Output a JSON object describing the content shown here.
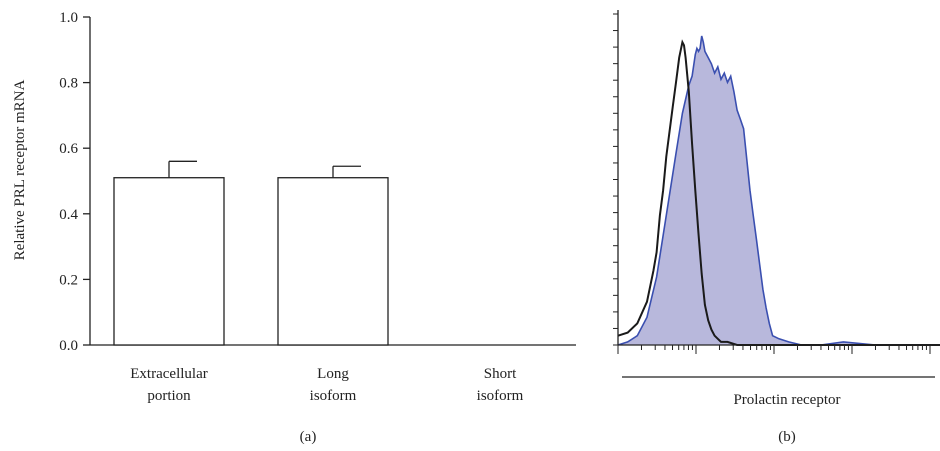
{
  "chart_data": [
    {
      "type": "bar",
      "panel_label": "(a)",
      "ylabel": "Relative PRL receptor mRNA",
      "ylim": [
        0,
        1.0
      ],
      "y_ticks": [
        "0.0",
        "0.2",
        "0.4",
        "0.6",
        "0.8",
        "1.0"
      ],
      "categories": [
        [
          "Extracellular",
          "portion"
        ],
        [
          "Long",
          "isoform"
        ],
        [
          "Short",
          "isoform"
        ]
      ],
      "values": [
        0.51,
        0.51,
        0.0
      ],
      "errors": [
        0.05,
        0.035,
        0.0
      ],
      "bar_fill": "#ffffff",
      "bar_stroke": "#222222",
      "grid": false
    },
    {
      "type": "area",
      "panel_label": "(b)",
      "xlabel": "Prolactin receptor",
      "x_scale": "log",
      "x_ticks_labeled": false,
      "y_ticks_labeled": false,
      "grid": false,
      "series": [
        {
          "style": "filled",
          "color": "#3a4fb0",
          "fill": "#b8b8dc",
          "x": [
            0.0,
            0.03,
            0.06,
            0.09,
            0.12,
            0.15,
            0.18,
            0.2,
            0.22,
            0.23,
            0.24,
            0.245,
            0.25,
            0.255,
            0.26,
            0.265,
            0.27,
            0.28,
            0.29,
            0.3,
            0.31,
            0.32,
            0.33,
            0.34,
            0.35,
            0.36,
            0.37,
            0.38,
            0.39,
            0.4,
            0.41,
            0.42,
            0.43,
            0.44,
            0.45,
            0.46,
            0.47,
            0.48,
            0.5,
            0.53,
            0.57,
            0.6,
            0.63,
            0.7,
            0.8,
            0.9,
            1.0
          ],
          "y": [
            0.0,
            0.01,
            0.03,
            0.09,
            0.22,
            0.42,
            0.62,
            0.75,
            0.84,
            0.87,
            0.94,
            0.96,
            0.95,
            0.96,
            1.0,
            0.98,
            0.95,
            0.93,
            0.91,
            0.88,
            0.9,
            0.86,
            0.88,
            0.85,
            0.87,
            0.82,
            0.76,
            0.73,
            0.7,
            0.6,
            0.5,
            0.42,
            0.34,
            0.26,
            0.18,
            0.12,
            0.07,
            0.03,
            0.02,
            0.01,
            0.0,
            0.0,
            0.0,
            0.01,
            0.0,
            0.0,
            0.0
          ]
        },
        {
          "style": "line",
          "color": "#1a1a1a",
          "x": [
            0.0,
            0.03,
            0.06,
            0.09,
            0.11,
            0.12,
            0.13,
            0.14,
            0.15,
            0.16,
            0.17,
            0.18,
            0.19,
            0.2,
            0.205,
            0.21,
            0.22,
            0.23,
            0.24,
            0.25,
            0.26,
            0.27,
            0.28,
            0.29,
            0.3,
            0.31,
            0.32,
            0.34,
            0.37,
            0.4,
            0.45,
            0.55,
            0.7,
            0.85,
            1.0
          ],
          "y": [
            0.03,
            0.04,
            0.07,
            0.14,
            0.24,
            0.3,
            0.42,
            0.5,
            0.61,
            0.69,
            0.77,
            0.85,
            0.93,
            0.98,
            0.97,
            0.93,
            0.82,
            0.65,
            0.5,
            0.36,
            0.23,
            0.13,
            0.08,
            0.05,
            0.03,
            0.02,
            0.01,
            0.01,
            0.0,
            0.0,
            0.0,
            0.0,
            0.0,
            0.0,
            0.0
          ]
        }
      ]
    }
  ]
}
